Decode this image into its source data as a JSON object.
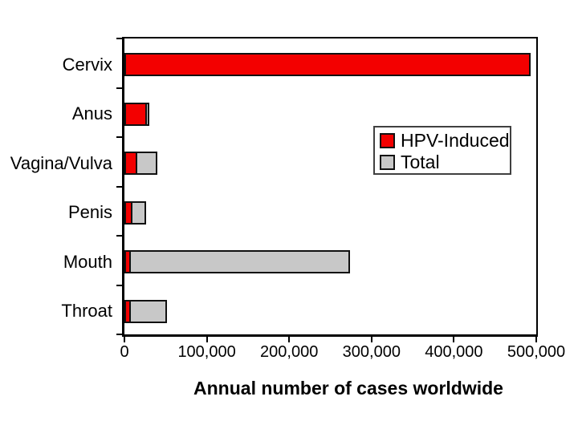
{
  "chart_data": {
    "type": "bar",
    "orientation": "horizontal",
    "title": "",
    "xlabel": "Annual number of cases worldwide",
    "ylabel": "",
    "categories": [
      "Cervix",
      "Anus",
      "Vagina/Vulva",
      "Penis",
      "Mouth",
      "Throat"
    ],
    "series": [
      {
        "name": "HPV-Induced",
        "color": "#f30000",
        "values": [
          493000,
          27000,
          16000,
          10000,
          8000,
          8000
        ]
      },
      {
        "name": "Total",
        "color": "#c8c8c8",
        "values": [
          493000,
          30000,
          40000,
          26000,
          274000,
          52000
        ]
      }
    ],
    "xlim": [
      0,
      500000
    ],
    "x_ticks": [
      {
        "value": 0,
        "label": "0"
      },
      {
        "value": 100000,
        "label": "100,000"
      },
      {
        "value": 200000,
        "label": "200,000"
      },
      {
        "value": 300000,
        "label": "300,000"
      },
      {
        "value": 400000,
        "label": "400,000"
      },
      {
        "value": 500000,
        "label": "500,000"
      }
    ],
    "legend": {
      "position": "inside-middle-right",
      "entries": [
        "HPV-Induced",
        "Total"
      ]
    },
    "grid": false,
    "background": "#ffffff",
    "axis_color": "#000000",
    "bar_border_color": "#111111"
  }
}
